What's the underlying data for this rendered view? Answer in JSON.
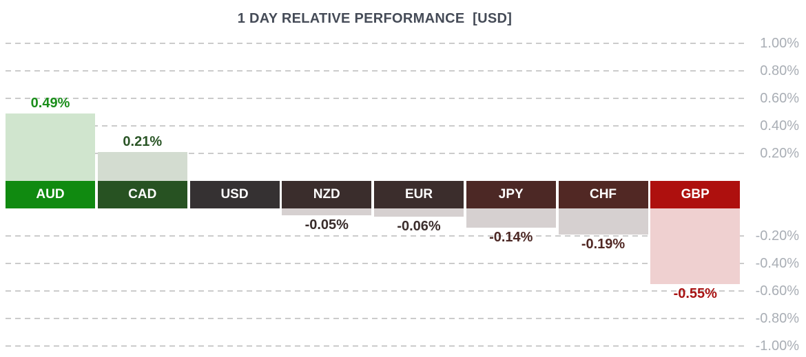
{
  "title": "1 DAY RELATIVE PERFORMANCE  [USD]",
  "chart_data": {
    "type": "bar",
    "title": "1 DAY RELATIVE PERFORMANCE  [USD]",
    "orientation": "vertical",
    "unit": "%",
    "categories": [
      "AUD",
      "CAD",
      "USD",
      "NZD",
      "EUR",
      "JPY",
      "CHF",
      "GBP"
    ],
    "values": [
      0.49,
      0.21,
      0.0,
      -0.05,
      -0.06,
      -0.14,
      -0.19,
      -0.55
    ],
    "series": [
      {
        "label": "AUD",
        "value": 0.49,
        "value_label": "0.49%",
        "box_color": "#108a10",
        "bar_color": "#d0e5ce",
        "text_color": "#1b8e1b"
      },
      {
        "label": "CAD",
        "value": 0.21,
        "value_label": "0.21%",
        "box_color": "#275222",
        "bar_color": "#d3dcd0",
        "text_color": "#2a5526"
      },
      {
        "label": "USD",
        "value": 0.0,
        "value_label": "",
        "box_color": "#353132",
        "bar_color": "#d6d0d0",
        "text_color": "#353132"
      },
      {
        "label": "NZD",
        "value": -0.05,
        "value_label": "-0.05%",
        "box_color": "#3a2d2c",
        "bar_color": "#d6d0d0",
        "text_color": "#382b2a"
      },
      {
        "label": "EUR",
        "value": -0.06,
        "value_label": "-0.06%",
        "box_color": "#3b2d2c",
        "bar_color": "#d6d0d0",
        "text_color": "#3b2d2c"
      },
      {
        "label": "JPY",
        "value": -0.14,
        "value_label": "-0.14%",
        "box_color": "#4c2825",
        "bar_color": "#d6d0d0",
        "text_color": "#4c2825"
      },
      {
        "label": "CHF",
        "value": -0.19,
        "value_label": "-0.19%",
        "box_color": "#512824",
        "bar_color": "#d6d0d0",
        "text_color": "#512824"
      },
      {
        "label": "GBP",
        "value": -0.55,
        "value_label": "-0.55%",
        "box_color": "#ae100e",
        "bar_color": "#efd0d0",
        "text_color": "#a81313"
      }
    ],
    "yticks": [
      {
        "value": 1.0,
        "label": "1.00%"
      },
      {
        "value": 0.8,
        "label": "0.80%"
      },
      {
        "value": 0.6,
        "label": "0.60%"
      },
      {
        "value": 0.4,
        "label": "0.40%"
      },
      {
        "value": 0.2,
        "label": "0.20%"
      },
      {
        "value": -0.2,
        "label": "-0.20%"
      },
      {
        "value": -0.4,
        "label": "-0.40%"
      },
      {
        "value": -0.6,
        "label": "-0.60%"
      },
      {
        "value": -0.8,
        "label": "-0.80%"
      },
      {
        "value": -1.0,
        "label": "-1.00%"
      }
    ],
    "ylim": [
      -1.0,
      1.0
    ],
    "grid": "horizontal-dashed",
    "axis_side": "right",
    "grid_color": "#cbcbcb",
    "axis_text_color": "#a9aeb5",
    "title_color": "#454b57",
    "legend": "none"
  }
}
